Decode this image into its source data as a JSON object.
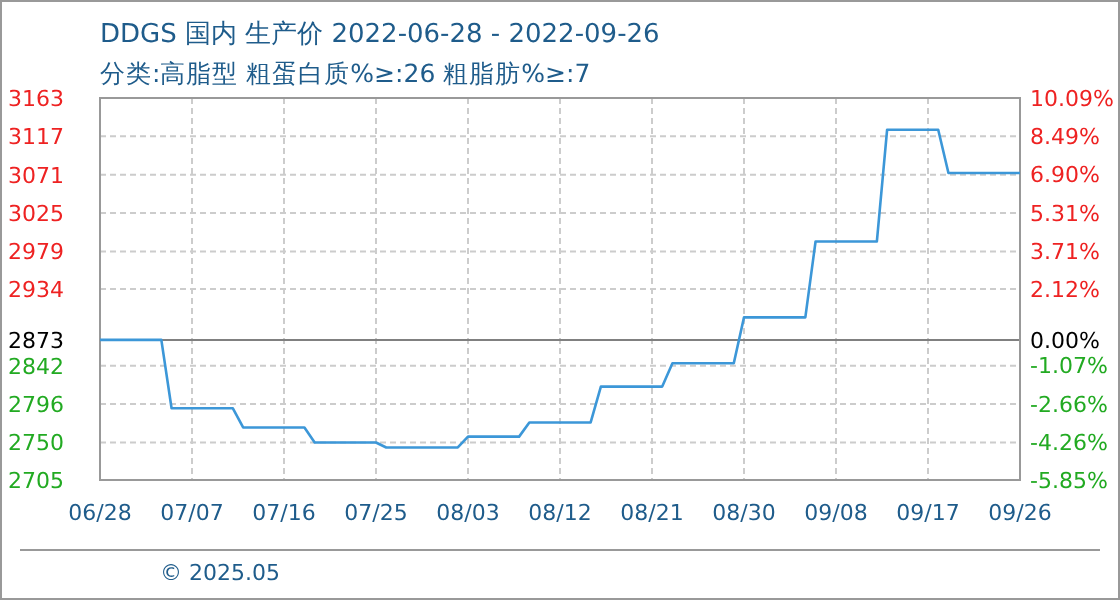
{
  "chart_data": {
    "type": "line",
    "title": "DDGS 国内 生产价 2022-06-28 - 2022-09-26",
    "subtitle": "分类:高脂型 粗蛋白质%≥:26 粗脂肪%≥:7",
    "x": [
      "2022-06-28",
      "2022-07-04",
      "2022-07-05",
      "2022-07-11",
      "2022-07-12",
      "2022-07-18",
      "2022-07-19",
      "2022-07-25",
      "2022-07-26",
      "2022-08-02",
      "2022-08-03",
      "2022-08-08",
      "2022-08-09",
      "2022-08-15",
      "2022-08-16",
      "2022-08-22",
      "2022-08-23",
      "2022-08-29",
      "2022-08-30",
      "2022-09-05",
      "2022-09-06",
      "2022-09-12",
      "2022-09-13",
      "2022-09-18",
      "2022-09-19",
      "2022-09-26"
    ],
    "series": [
      {
        "color": "#3c97d8",
        "values": [
          2873,
          2873,
          2791,
          2791,
          2768,
          2768,
          2750,
          2750,
          2744,
          2744,
          2757,
          2757,
          2774,
          2774,
          2817,
          2817,
          2845,
          2845,
          2900,
          2900,
          2991,
          2991,
          3125,
          3125,
          3073,
          3073
        ]
      }
    ],
    "xlim": [
      "2022-06-28",
      "2022-09-26"
    ],
    "xticks": [
      {
        "value": "2022-06-28",
        "label": "06/28"
      },
      {
        "value": "2022-07-07",
        "label": "07/07"
      },
      {
        "value": "2022-07-16",
        "label": "07/16"
      },
      {
        "value": "2022-07-25",
        "label": "07/25"
      },
      {
        "value": "2022-08-03",
        "label": "08/03"
      },
      {
        "value": "2022-08-12",
        "label": "08/12"
      },
      {
        "value": "2022-08-21",
        "label": "08/21"
      },
      {
        "value": "2022-08-30",
        "label": "08/30"
      },
      {
        "value": "2022-09-08",
        "label": "09/08"
      },
      {
        "value": "2022-09-17",
        "label": "09/17"
      },
      {
        "value": "2022-09-26",
        "label": "09/26"
      }
    ],
    "ylim": [
      2705,
      3163
    ],
    "yticks": [
      3163,
      3117,
      3071,
      3025,
      2979,
      2934,
      2873,
      2842,
      2796,
      2750,
      2705
    ],
    "y2lim": [
      -5.85,
      10.09
    ],
    "y2ticks": [
      {
        "value": 10.09,
        "label": "10.09%"
      },
      {
        "value": 8.49,
        "label": "8.49%"
      },
      {
        "value": 6.9,
        "label": "6.90%"
      },
      {
        "value": 5.31,
        "label": "5.31%"
      },
      {
        "value": 3.71,
        "label": "3.71%"
      },
      {
        "value": 2.12,
        "label": "2.12%"
      },
      {
        "value": 0,
        "label": "0.00%"
      },
      {
        "value": -1.07,
        "label": "-1.07%"
      },
      {
        "value": -2.66,
        "label": "-2.66%"
      },
      {
        "value": -4.26,
        "label": "-4.26%"
      },
      {
        "value": -5.85,
        "label": "-5.85%"
      }
    ],
    "ref_lines": [
      {
        "axis": "y",
        "value": 2873,
        "color": "#808080"
      }
    ],
    "grid": true,
    "annotations": [
      "© 2025.05"
    ]
  }
}
